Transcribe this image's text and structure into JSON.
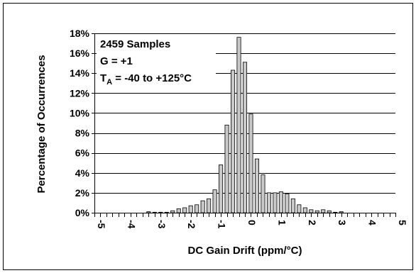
{
  "chart_data": {
    "type": "bar",
    "title": "",
    "xlabel": "DC Gain Drift (ppm/°C)",
    "ylabel": "Percentage of Occurrences",
    "xlim": [
      -5,
      5
    ],
    "ylim": [
      0,
      18
    ],
    "grid": "horizontal",
    "y_ticks": [
      "0%",
      "2%",
      "4%",
      "6%",
      "8%",
      "10%",
      "12%",
      "14%",
      "16%",
      "18%"
    ],
    "x_ticks": [
      "-5",
      "-4",
      "-3",
      "-2",
      "-1",
      "0",
      "1",
      "2",
      "3",
      "4",
      "5"
    ],
    "annotations": {
      "samples": "2459 Samples",
      "gain": "G = +1",
      "temp_prefix": "T",
      "temp_subscript": "A",
      "temp_range": " = -40 to +125°C"
    },
    "bin_width": 0.2,
    "bar_color": "#c8c8c8",
    "x": [
      -3.2,
      -3.0,
      -2.8,
      -2.6,
      -2.4,
      -2.2,
      -2.0,
      -1.8,
      -1.6,
      -1.4,
      -1.2,
      -1.0,
      -0.8,
      -0.6,
      -0.4,
      -0.2,
      0.0,
      0.2,
      0.4,
      0.6,
      0.8,
      1.0,
      1.2,
      1.4,
      1.6,
      1.8,
      2.0,
      2.2,
      2.4,
      2.6,
      2.8,
      3.0,
      3.2
    ],
    "values": [
      0.1,
      0.05,
      0.05,
      0.05,
      0.2,
      0.4,
      0.5,
      0.7,
      0.8,
      1.2,
      1.4,
      2.3,
      4.8,
      8.8,
      14.3,
      17.6,
      15.1,
      9.9,
      5.4,
      3.8,
      2.0,
      2.0,
      2.1,
      1.9,
      1.4,
      0.8,
      0.5,
      0.3,
      0.2,
      0.3,
      0.2,
      0.05,
      0.1
    ]
  }
}
